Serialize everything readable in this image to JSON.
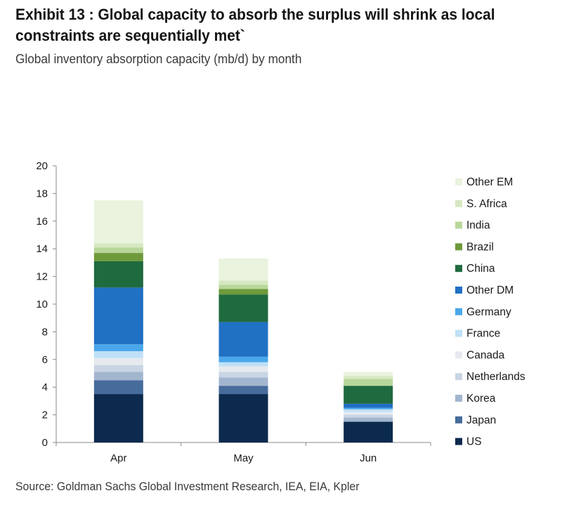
{
  "header": {
    "title_line1": "Exhibit 13 : Global capacity to absorb the surplus will shrink as local",
    "title_line2": "constraints are sequentially met`",
    "subtitle": "Global inventory absorption capacity (mb/d) by month"
  },
  "footer": {
    "source": "Source: Goldman Sachs Global Investment Research, IEA, EIA, Kpler"
  },
  "chart_data": {
    "type": "bar",
    "stacked": true,
    "categories": [
      "Apr",
      "May",
      "Jun"
    ],
    "ylim": [
      0,
      20
    ],
    "yticks": [
      0,
      2,
      4,
      6,
      8,
      10,
      12,
      14,
      16,
      18,
      20
    ],
    "grid": false,
    "legend_position": "right",
    "series": [
      {
        "name": "US",
        "color": "#0c2a4d",
        "values": [
          3.5,
          3.5,
          1.5
        ]
      },
      {
        "name": "Japan",
        "color": "#466c9c",
        "values": [
          1.0,
          0.6,
          0.0
        ]
      },
      {
        "name": "Korea",
        "color": "#a3b6cf",
        "values": [
          0.6,
          0.6,
          0.3
        ]
      },
      {
        "name": "Netherlands",
        "color": "#c9d5e4",
        "values": [
          0.5,
          0.4,
          0.2
        ]
      },
      {
        "name": "Canada",
        "color": "#e6eaef",
        "values": [
          0.5,
          0.4,
          0.2
        ]
      },
      {
        "name": "France",
        "color": "#bfe0f6",
        "values": [
          0.5,
          0.3,
          0.2
        ]
      },
      {
        "name": "Germany",
        "color": "#4aa7ea",
        "values": [
          0.5,
          0.4,
          0.1
        ]
      },
      {
        "name": "Other DM",
        "color": "#2070c4",
        "values": [
          4.1,
          2.5,
          0.3
        ]
      },
      {
        "name": "China",
        "color": "#1f6a3f",
        "values": [
          1.9,
          2.0,
          1.3
        ]
      },
      {
        "name": "Brazil",
        "color": "#6f9a3a",
        "values": [
          0.6,
          0.4,
          0.0
        ]
      },
      {
        "name": "India",
        "color": "#b8d79a",
        "values": [
          0.4,
          0.3,
          0.5
        ]
      },
      {
        "name": "S. Africa",
        "color": "#d6e8c2",
        "values": [
          0.3,
          0.3,
          0.2
        ]
      },
      {
        "name": "Other EM",
        "color": "#e9f3de",
        "values": [
          3.1,
          1.6,
          0.3
        ]
      }
    ]
  }
}
